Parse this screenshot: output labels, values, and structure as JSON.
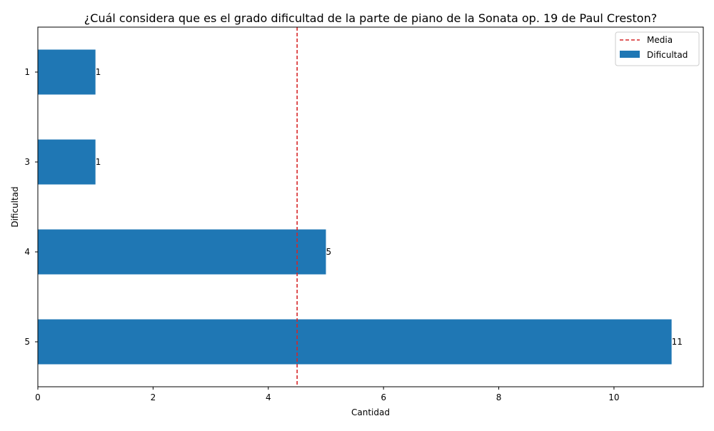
{
  "chart_data": {
    "type": "bar",
    "orientation": "horizontal",
    "title": "¿Cuál considera que es el grado dificultad de la parte de piano de la Sonata op. 19 de Paul Creston?",
    "xlabel": "Cantidad",
    "ylabel": "Dificultad",
    "categories": [
      "1",
      "3",
      "4",
      "5"
    ],
    "values": [
      1,
      1,
      5,
      11
    ],
    "data_labels": [
      "1",
      "1",
      "5",
      "11"
    ],
    "xlim": [
      0,
      11.55
    ],
    "xticks": [
      0,
      2,
      4,
      6,
      8,
      10
    ],
    "xtick_labels": [
      "0",
      "2",
      "4",
      "6",
      "8",
      "10"
    ],
    "mean": 4.5,
    "grid": false,
    "legend_position": "top-right",
    "legend": {
      "mean_label": "Media",
      "bar_label": "Dificultad"
    },
    "colors": {
      "bar": "#1f77b4",
      "mean_line": "#d62728"
    }
  }
}
